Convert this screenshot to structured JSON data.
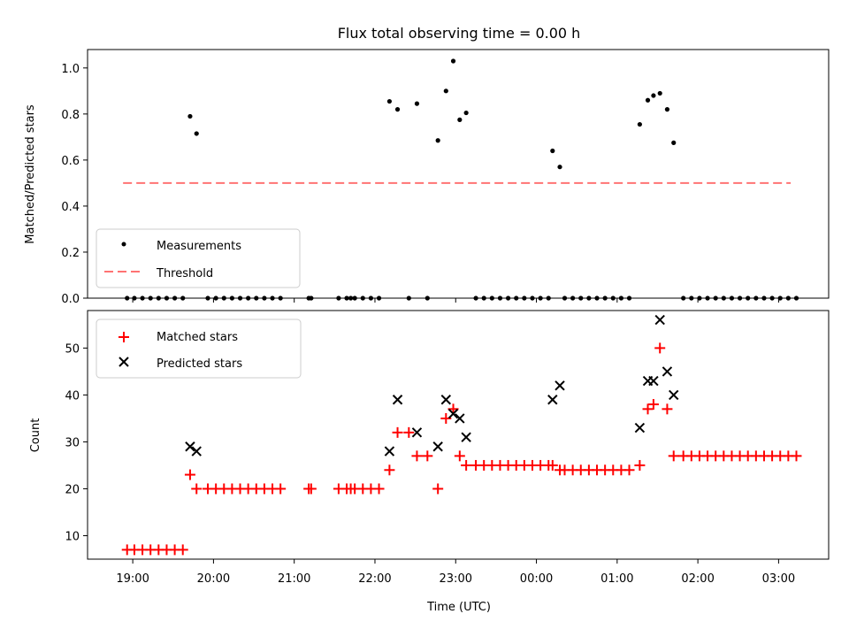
{
  "chart_data": [
    {
      "type": "scatter",
      "title": "Flux total observing time = 0.00 h",
      "xlabel": "",
      "ylabel": "Matched/Predicted stars",
      "ylim": [
        0.0,
        1.08
      ],
      "yticks": [
        "0.0",
        "0.2",
        "0.4",
        "0.6",
        "0.8",
        "1.0"
      ],
      "legend": {
        "placement": "lower-left",
        "entries": [
          "Measurements",
          "Threshold"
        ]
      },
      "series": [
        {
          "name": "Measurements",
          "color": "#000000",
          "marker": "dot",
          "x": [
            18.93,
            19.02,
            19.12,
            19.22,
            19.32,
            19.42,
            19.52,
            19.62,
            19.71,
            19.79,
            19.93,
            20.03,
            20.13,
            20.23,
            20.33,
            20.43,
            20.53,
            20.63,
            20.73,
            20.83,
            21.18,
            21.21,
            21.55,
            21.65,
            21.7,
            21.75,
            21.85,
            21.95,
            22.05,
            22.18,
            22.28,
            22.42,
            22.52,
            22.65,
            22.78,
            22.88,
            22.97,
            23.05,
            23.13,
            23.25,
            23.35,
            23.45,
            23.55,
            23.65,
            23.75,
            23.85,
            23.95,
            24.05,
            24.15,
            24.2,
            24.29,
            24.35,
            24.45,
            24.55,
            24.65,
            24.75,
            24.85,
            24.95,
            25.05,
            25.15,
            25.28,
            25.38,
            25.45,
            25.53,
            25.62,
            25.7,
            25.82,
            25.92,
            26.02,
            26.12,
            26.22,
            26.32,
            26.42,
            26.52,
            26.62,
            26.72,
            26.82,
            26.92,
            27.02,
            27.12,
            27.22
          ],
          "y": [
            0,
            0,
            0,
            0,
            0,
            0,
            0,
            0,
            0.79,
            0.715,
            0,
            0,
            0,
            0,
            0,
            0,
            0,
            0,
            0,
            0,
            0,
            0,
            0,
            0,
            0,
            0,
            0,
            0,
            0,
            0.855,
            0.82,
            0,
            0.845,
            0,
            0.685,
            0.9,
            1.03,
            0.775,
            0.805,
            0,
            0,
            0,
            0,
            0,
            0,
            0,
            0,
            0,
            0,
            0.64,
            0.57,
            0,
            0,
            0,
            0,
            0,
            0,
            0,
            0,
            0,
            0.755,
            0.86,
            0.88,
            0.89,
            0.82,
            0.675,
            0,
            0,
            0,
            0,
            0,
            0,
            0,
            0,
            0,
            0,
            0,
            0,
            0,
            0,
            0
          ]
        },
        {
          "name": "Threshold",
          "color": "#ff0000",
          "style": "dashed",
          "x": [
            18.88,
            27.15
          ],
          "y": [
            0.5,
            0.5
          ]
        }
      ]
    },
    {
      "type": "scatter",
      "title": "",
      "xlabel": "Time (UTC)",
      "ylabel": "Count",
      "ylim": [
        5,
        58
      ],
      "yticks": [
        "10",
        "20",
        "30",
        "40",
        "50"
      ],
      "x_tick_labels": [
        "19:00",
        "20:00",
        "21:00",
        "22:00",
        "23:00",
        "00:00",
        "01:00",
        "02:00",
        "03:00"
      ],
      "legend": {
        "placement": "upper-left",
        "entries": [
          "Matched stars",
          "Predicted stars"
        ]
      },
      "series": [
        {
          "name": "Matched stars",
          "color": "#ff0000",
          "marker": "plus",
          "x": [
            18.93,
            19.02,
            19.12,
            19.22,
            19.32,
            19.42,
            19.52,
            19.62,
            19.71,
            19.79,
            19.93,
            20.03,
            20.13,
            20.23,
            20.33,
            20.43,
            20.53,
            20.63,
            20.73,
            20.83,
            21.18,
            21.21,
            21.55,
            21.65,
            21.7,
            21.75,
            21.85,
            21.95,
            22.05,
            22.18,
            22.28,
            22.42,
            22.52,
            22.65,
            22.78,
            22.88,
            22.97,
            23.05,
            23.13,
            23.25,
            23.35,
            23.45,
            23.55,
            23.65,
            23.75,
            23.85,
            23.95,
            24.05,
            24.15,
            24.2,
            24.29,
            24.35,
            24.45,
            24.55,
            24.65,
            24.75,
            24.85,
            24.95,
            25.05,
            25.15,
            25.28,
            25.38,
            25.45,
            25.53,
            25.62,
            25.7,
            25.82,
            25.92,
            26.02,
            26.12,
            26.22,
            26.32,
            26.42,
            26.52,
            26.62,
            26.72,
            26.82,
            26.92,
            27.02,
            27.12,
            27.22
          ],
          "y": [
            7,
            7,
            7,
            7,
            7,
            7,
            7,
            7,
            23,
            20,
            20,
            20,
            20,
            20,
            20,
            20,
            20,
            20,
            20,
            20,
            20,
            20,
            20,
            20,
            20,
            20,
            20,
            20,
            20,
            24,
            32,
            32,
            27,
            27,
            20,
            35,
            37,
            27,
            25,
            25,
            25,
            25,
            25,
            25,
            25,
            25,
            25,
            25,
            25,
            25,
            24,
            24,
            24,
            24,
            24,
            24,
            24,
            24,
            24,
            24,
            25,
            37,
            38,
            50,
            37,
            27,
            27,
            27,
            27,
            27,
            27,
            27,
            27,
            27,
            27,
            27,
            27,
            27,
            27,
            27,
            27
          ]
        },
        {
          "name": "Predicted stars",
          "color": "#000000",
          "marker": "x",
          "x": [
            19.71,
            19.79,
            22.18,
            22.28,
            22.52,
            22.78,
            22.88,
            22.97,
            23.05,
            23.13,
            24.2,
            24.29,
            25.28,
            25.38,
            25.45,
            25.53,
            25.62,
            25.7
          ],
          "y": [
            29,
            28,
            28,
            39,
            32,
            29,
            39,
            36,
            35,
            31,
            39,
            42,
            33,
            43,
            43,
            56,
            45,
            40
          ]
        }
      ]
    }
  ]
}
